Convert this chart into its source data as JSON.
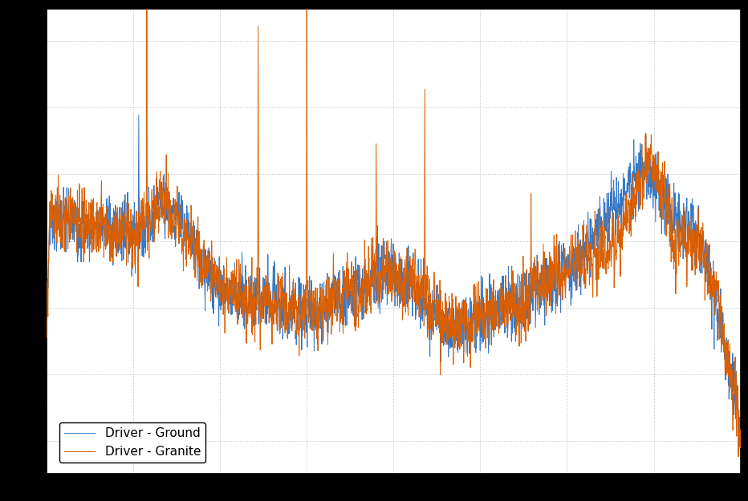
{
  "line1_label": "Driver - Ground",
  "line2_label": "Driver - Granite",
  "line1_color": "#3578c8",
  "line2_color": "#d95f02",
  "bg_color": "#ffffff",
  "outer_bg": "#000000",
  "grid_color": "#b0b0b0",
  "linewidth": 0.7,
  "figsize": [
    9.32,
    6.25
  ],
  "dpi": 100,
  "legend_loc": "lower left",
  "legend_fontsize": 11
}
